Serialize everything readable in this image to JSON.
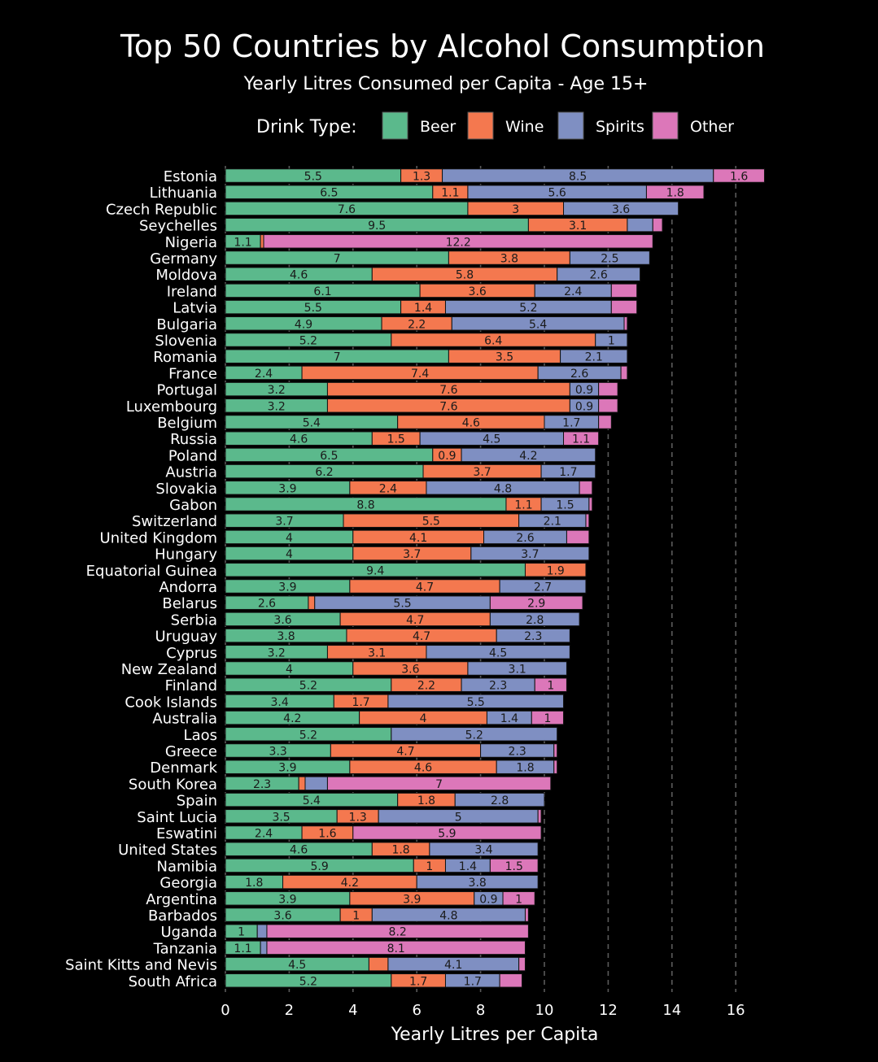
{
  "chart_data": {
    "type": "bar",
    "orientation": "horizontal",
    "stacked": true,
    "title": "Top 50 Countries by Alcohol Consumption",
    "subtitle": "Yearly Litres Consumed per Capita - Age 15+",
    "legend_title": "Drink Type:",
    "xlabel": "Yearly Litres per Capita",
    "ylabel": "",
    "xlim": [
      0,
      17
    ],
    "x_ticks": [
      0,
      2,
      4,
      6,
      8,
      10,
      12,
      14,
      16
    ],
    "legend_position": "top",
    "series": [
      {
        "name": "Beer",
        "color": "#5bb98c"
      },
      {
        "name": "Wine",
        "color": "#f4784f"
      },
      {
        "name": "Spirits",
        "color": "#7f8fc2"
      },
      {
        "name": "Other",
        "color": "#dc77b9"
      }
    ],
    "rows": [
      {
        "country": "Estonia",
        "values": [
          5.5,
          1.3,
          8.5,
          1.6
        ]
      },
      {
        "country": "Lithuania",
        "values": [
          6.5,
          1.1,
          5.6,
          1.8
        ]
      },
      {
        "country": "Czech Republic",
        "values": [
          7.6,
          3,
          3.6,
          0
        ]
      },
      {
        "country": "Seychelles",
        "values": [
          9.5,
          3.1,
          0.8,
          0.3
        ]
      },
      {
        "country": "Nigeria",
        "values": [
          1.1,
          0.1,
          0,
          12.2
        ]
      },
      {
        "country": "Germany",
        "values": [
          7,
          3.8,
          2.5,
          0
        ]
      },
      {
        "country": "Moldova",
        "values": [
          4.6,
          5.8,
          2.6,
          0
        ]
      },
      {
        "country": "Ireland",
        "values": [
          6.1,
          3.6,
          2.4,
          0.8
        ]
      },
      {
        "country": "Latvia",
        "values": [
          5.5,
          1.4,
          5.2,
          0.8
        ]
      },
      {
        "country": "Bulgaria",
        "values": [
          4.9,
          2.2,
          5.4,
          0.1
        ]
      },
      {
        "country": "Slovenia",
        "values": [
          5.2,
          6.4,
          1,
          0
        ]
      },
      {
        "country": "Romania",
        "values": [
          7,
          3.5,
          2.1,
          0
        ]
      },
      {
        "country": "France",
        "values": [
          2.4,
          7.4,
          2.6,
          0.2
        ]
      },
      {
        "country": "Portugal",
        "values": [
          3.2,
          7.6,
          0.9,
          0.6
        ]
      },
      {
        "country": "Luxembourg",
        "values": [
          3.2,
          7.6,
          0.9,
          0.6
        ]
      },
      {
        "country": "Belgium",
        "values": [
          5.4,
          4.6,
          1.7,
          0.4
        ]
      },
      {
        "country": "Russia",
        "values": [
          4.6,
          1.5,
          4.5,
          1.1
        ]
      },
      {
        "country": "Poland",
        "values": [
          6.5,
          0.9,
          4.2,
          0
        ]
      },
      {
        "country": "Austria",
        "values": [
          6.2,
          3.7,
          1.7,
          0
        ]
      },
      {
        "country": "Slovakia",
        "values": [
          3.9,
          2.4,
          4.8,
          0.4
        ]
      },
      {
        "country": "Gabon",
        "values": [
          8.8,
          1.1,
          1.5,
          0.1
        ]
      },
      {
        "country": "Switzerland",
        "values": [
          3.7,
          5.5,
          2.1,
          0.1
        ]
      },
      {
        "country": "United Kingdom",
        "values": [
          4,
          4.1,
          2.6,
          0.7
        ]
      },
      {
        "country": "Hungary",
        "values": [
          4,
          3.7,
          3.7,
          0
        ]
      },
      {
        "country": "Equatorial Guinea",
        "values": [
          9.4,
          1.9,
          0,
          0
        ]
      },
      {
        "country": "Andorra",
        "values": [
          3.9,
          4.7,
          2.7,
          0
        ]
      },
      {
        "country": "Belarus",
        "values": [
          2.6,
          0.2,
          5.5,
          2.9
        ]
      },
      {
        "country": "Serbia",
        "values": [
          3.6,
          4.7,
          2.8,
          0
        ]
      },
      {
        "country": "Uruguay",
        "values": [
          3.8,
          4.7,
          2.3,
          0
        ]
      },
      {
        "country": "Cyprus",
        "values": [
          3.2,
          3.1,
          4.5,
          0
        ]
      },
      {
        "country": "New Zealand",
        "values": [
          4,
          3.6,
          3.1,
          0
        ]
      },
      {
        "country": "Finland",
        "values": [
          5.2,
          2.2,
          2.3,
          1
        ]
      },
      {
        "country": "Cook Islands",
        "values": [
          3.4,
          1.7,
          5.5,
          0
        ]
      },
      {
        "country": "Australia",
        "values": [
          4.2,
          4,
          1.4,
          1
        ]
      },
      {
        "country": "Laos",
        "values": [
          5.2,
          0,
          5.2,
          0
        ]
      },
      {
        "country": "Greece",
        "values": [
          3.3,
          4.7,
          2.3,
          0.1
        ]
      },
      {
        "country": "Denmark",
        "values": [
          3.9,
          4.6,
          1.8,
          0.1
        ]
      },
      {
        "country": "South Korea",
        "values": [
          2.3,
          0.2,
          0.7,
          7
        ]
      },
      {
        "country": "Spain",
        "values": [
          5.4,
          1.8,
          2.8,
          0
        ]
      },
      {
        "country": "Saint Lucia",
        "values": [
          3.5,
          1.3,
          5,
          0.1
        ]
      },
      {
        "country": "Eswatini",
        "values": [
          2.4,
          1.6,
          0,
          5.9
        ]
      },
      {
        "country": "United States",
        "values": [
          4.6,
          1.8,
          3.4,
          0
        ]
      },
      {
        "country": "Namibia",
        "values": [
          5.9,
          1,
          1.4,
          1.5
        ]
      },
      {
        "country": "Georgia",
        "values": [
          1.8,
          4.2,
          3.8,
          0
        ]
      },
      {
        "country": "Argentina",
        "values": [
          3.9,
          3.9,
          0.9,
          1
        ]
      },
      {
        "country": "Barbados",
        "values": [
          3.6,
          1,
          4.8,
          0.1
        ]
      },
      {
        "country": "Uganda",
        "values": [
          1,
          0,
          0.3,
          8.2
        ]
      },
      {
        "country": "Tanzania",
        "values": [
          1.1,
          0,
          0.2,
          8.1
        ]
      },
      {
        "country": "Saint Kitts and Nevis",
        "values": [
          4.5,
          0.6,
          4.1,
          0.2
        ]
      },
      {
        "country": "South Africa",
        "values": [
          5.2,
          1.7,
          1.7,
          0.7
        ]
      }
    ]
  }
}
